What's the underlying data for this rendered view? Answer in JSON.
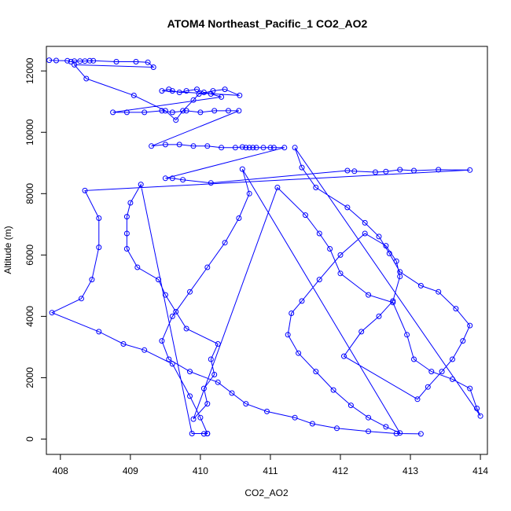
{
  "chart_data": {
    "type": "scatter",
    "title": "ATOM4 Northeast_Pacific_1 CO2_AO2",
    "xlabel": "CO2_AO2",
    "ylabel": "Altitude (m)",
    "xlim": [
      407.8,
      414.1
    ],
    "ylim": [
      -500,
      12800
    ],
    "xticks": [
      408,
      409,
      410,
      411,
      412,
      413,
      414
    ],
    "yticks": [
      0,
      2000,
      4000,
      6000,
      8000,
      10000,
      12000
    ],
    "grid": false,
    "legend": "none",
    "marker": "open-circle",
    "connect_points": true,
    "color": "#0000ff",
    "x": [
      407.84,
      407.94,
      408.1,
      408.15,
      408.2,
      408.28,
      408.35,
      408.42,
      408.47,
      408.8,
      409.08,
      409.25,
      409.33,
      408.2,
      408.37,
      409.05,
      409.5,
      409.65,
      409.75,
      409.9,
      409.98,
      410.18,
      410.35,
      410.56,
      409.45,
      409.55,
      409.6,
      409.7,
      409.8,
      409.95,
      410.05,
      410.15,
      410.3,
      408.75,
      408.95,
      409.2,
      409.45,
      409.6,
      409.8,
      410.0,
      410.2,
      410.4,
      410.55,
      409.3,
      409.5,
      409.7,
      409.9,
      410.1,
      410.3,
      410.5,
      410.6,
      410.65,
      410.7,
      410.75,
      410.8,
      410.9,
      411.0,
      411.05,
      411.2,
      409.5,
      409.6,
      409.75,
      410.15,
      412.1,
      412.2,
      412.5,
      412.65,
      412.85,
      413.05,
      413.4,
      413.85,
      408.35,
      408.55,
      408.55,
      408.45,
      408.3,
      407.88,
      408.55,
      408.9,
      409.2,
      409.6,
      409.85,
      410.0,
      410.1,
      410.05,
      410.1,
      409.88,
      409.15,
      409.0,
      408.95,
      408.95,
      408.95,
      409.1,
      409.4,
      409.5,
      409.65,
      409.8,
      410.25,
      410.15,
      410.2,
      410.05,
      410.1,
      409.9,
      411.1,
      411.5,
      411.7,
      411.85,
      412.0,
      412.4,
      412.75,
      412.95,
      413.05,
      413.3,
      413.6,
      413.85,
      413.95,
      414.0,
      411.35,
      411.45,
      411.65,
      412.1,
      412.35,
      412.55,
      412.7,
      412.85,
      413.15,
      413.4,
      413.65,
      413.85,
      413.75,
      413.6,
      413.45,
      413.25,
      413.1,
      412.05,
      412.3,
      412.55,
      412.75,
      412.85,
      412.8,
      412.65,
      412.35,
      412.0,
      411.7,
      411.45,
      411.3,
      411.25,
      411.4,
      411.65,
      411.9,
      412.15,
      412.4,
      412.65,
      412.85,
      410.6,
      410.7,
      410.55,
      410.35,
      410.1,
      409.85,
      409.6,
      409.45,
      409.55,
      409.85,
      410.25,
      410.45,
      410.65,
      410.95,
      411.35,
      411.6,
      411.95,
      412.4,
      412.8,
      413.15
    ],
    "y": [
      12350,
      12340,
      12330,
      12300,
      12320,
      12320,
      12320,
      12330,
      12330,
      12300,
      12300,
      12280,
      12120,
      12200,
      11750,
      11200,
      10700,
      10400,
      10700,
      11050,
      11250,
      11350,
      11400,
      11200,
      11350,
      11400,
      11350,
      11300,
      11350,
      11400,
      11300,
      11250,
      11150,
      10650,
      10650,
      10650,
      10700,
      10650,
      10700,
      10650,
      10700,
      10700,
      10700,
      9550,
      9600,
      9600,
      9550,
      9550,
      9500,
      9500,
      9520,
      9500,
      9500,
      9500,
      9500,
      9500,
      9500,
      9500,
      9500,
      8500,
      8500,
      8450,
      8350,
      8750,
      8730,
      8700,
      8720,
      8780,
      8750,
      8780,
      8770,
      8100,
      7200,
      6250,
      5200,
      4580,
      4120,
      3500,
      3100,
      2900,
      2450,
      1400,
      700,
      180,
      170,
      180,
      180,
      8300,
      7700,
      7250,
      6700,
      6200,
      5600,
      5200,
      4700,
      4150,
      3600,
      3100,
      2600,
      2100,
      1650,
      1150,
      650,
      8200,
      7300,
      6700,
      6200,
      5400,
      4700,
      4450,
      3400,
      2600,
      2200,
      1950,
      1650,
      1000,
      750,
      9500,
      8850,
      8200,
      7550,
      7050,
      6600,
      6050,
      5450,
      5000,
      4800,
      4250,
      3700,
      3200,
      2600,
      2200,
      1700,
      1300,
      2700,
      3500,
      4000,
      4500,
      5300,
      5800,
      6300,
      6700,
      6000,
      5200,
      4500,
      4100,
      3400,
      2800,
      2200,
      1600,
      1100,
      700,
      400,
      200,
      8800,
      8000,
      7200,
      6400,
      5600,
      4800,
      4000,
      3200,
      2600,
      2200,
      1850,
      1500,
      1150,
      900,
      700,
      500,
      350,
      250,
      180,
      170
    ]
  }
}
